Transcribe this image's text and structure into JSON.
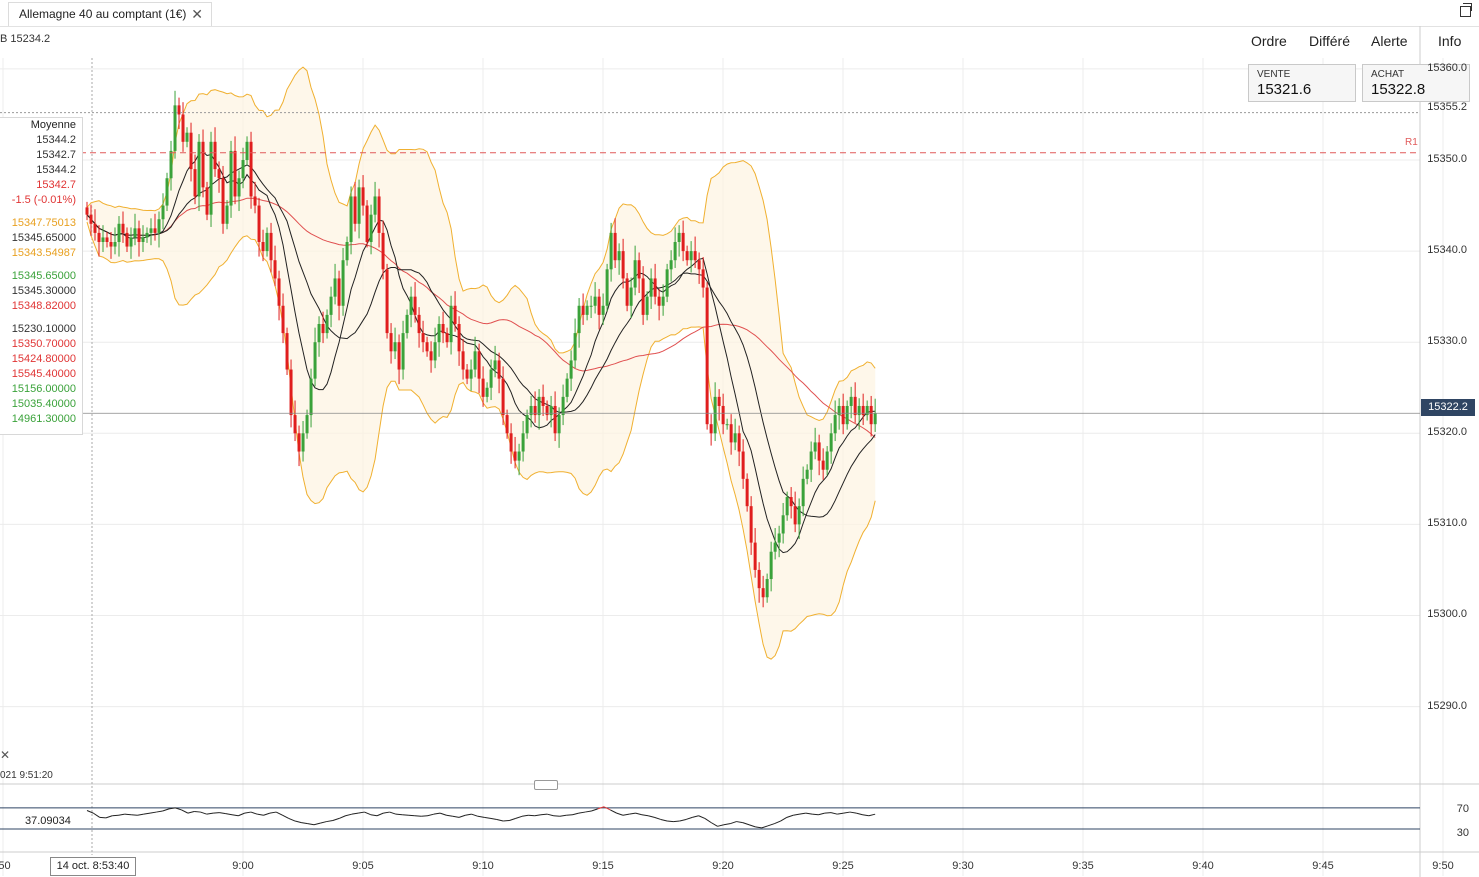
{
  "tab": {
    "title": "Allemagne 40 au comptant (1€)",
    "close": "✕"
  },
  "header": {
    "ohlc": "B 15234.2"
  },
  "menu": {
    "order": "Ordre",
    "deferred": "Différé",
    "alert": "Alerte",
    "info": "Info"
  },
  "quote": {
    "sell_label": "VENTE",
    "sell_value": "15321.6",
    "buy_label": "ACHAT",
    "buy_value": "15322.8"
  },
  "legend": {
    "title": "Moyenne",
    "rows": [
      {
        "text": "15344.2",
        "color": "#333333"
      },
      {
        "text": "15342.7",
        "color": "#333333"
      },
      {
        "text": "15344.2",
        "color": "#333333"
      },
      {
        "text": "15342.7",
        "color": "#e03434"
      },
      {
        "text": "-1.5 (-0.01%)",
        "color": "#e03434"
      },
      {
        "text": "15347.75013",
        "color": "#e8a020"
      },
      {
        "text": "15345.65000",
        "color": "#333333"
      },
      {
        "text": "15343.54987",
        "color": "#e8a020"
      },
      {
        "text": "15345.65000",
        "color": "#3aa23a"
      },
      {
        "text": "15345.30000",
        "color": "#333333"
      },
      {
        "text": "15348.82000",
        "color": "#e03434"
      },
      {
        "text": "15230.10000",
        "color": "#333333"
      },
      {
        "text": "15350.70000",
        "color": "#e03434"
      },
      {
        "text": "15424.80000",
        "color": "#e03434"
      },
      {
        "text": "15545.40000",
        "color": "#e03434"
      },
      {
        "text": "15156.00000",
        "color": "#3aa23a"
      },
      {
        "text": "15035.40000",
        "color": "#3aa23a"
      },
      {
        "text": "14961.30000",
        "color": "#3aa23a"
      }
    ]
  },
  "current_price": "15322.2",
  "r1_label": "R1",
  "r1_value": 15350.8,
  "dotted_level": 15355.2,
  "dotted_level_label": "15355.2",
  "cursor_time": "14 oct. 8:53:40",
  "datetime_left": "021 9:51:20",
  "close_mark": "✕",
  "rsi": {
    "value_label": "37.09034",
    "upper": 70,
    "lower": 30,
    "upper_label": "70",
    "lower_label": "30"
  },
  "colors": {
    "up": "#3aa23a",
    "down": "#e01e1e",
    "bollinger": "#f0b030",
    "ma_red": "#e05050",
    "ma_black": "#222222"
  },
  "chart_data": {
    "type": "candlestick",
    "interval": "10s",
    "ylim": [
      15281.5,
      15361.2
    ],
    "y_ticks": [
      "15360.0",
      "15350.0",
      "15340.0",
      "15330.0",
      "15320.0",
      "15310.0",
      "15300.0",
      "15290.0"
    ],
    "y_tick_values": [
      15360,
      15350,
      15340,
      15330,
      15320,
      15310,
      15300,
      15290
    ],
    "x_ticks": [
      ":50",
      "9:00",
      "9:05",
      "9:10",
      "9:15",
      "9:20",
      "9:25",
      "9:30",
      "9:35",
      "9:40",
      "9:45",
      "9:50"
    ],
    "x_tick_minutes": [
      -10,
      0,
      5,
      10,
      15,
      20,
      25,
      30,
      35,
      40,
      45,
      50
    ],
    "candle_start_minute": -6.5,
    "candle_step_minutes": 0.1667,
    "closes": [
      15344.0,
      15343.0,
      15342.0,
      15341.0,
      15341.5,
      15341.0,
      15340.5,
      15341.0,
      15343.0,
      15342.0,
      15340.5,
      15341.5,
      15342.5,
      15341.0,
      15341.5,
      15342.0,
      15342.5,
      15342.0,
      15343.5,
      15345.0,
      15348.0,
      15351.0,
      15356.0,
      15355.0,
      15352.0,
      15353.0,
      15349.0,
      15346.0,
      15352.0,
      15347.0,
      15344.0,
      15352.0,
      15349.0,
      15348.0,
      15343.0,
      15345.0,
      15351.0,
      15346.0,
      15348.0,
      15350.0,
      15352.0,
      15346.0,
      15345.0,
      15341.0,
      15340.0,
      15342.0,
      15339.0,
      15337.0,
      15334.0,
      15331.0,
      15327.0,
      15322.0,
      15320.0,
      15318.0,
      15320.0,
      15322.0,
      15326.0,
      15330.0,
      15332.0,
      15331.0,
      15333.0,
      15335.0,
      15337.0,
      15334.0,
      15339.0,
      15341.0,
      15346.0,
      15343.0,
      15347.0,
      15345.0,
      15341.0,
      15344.0,
      15346.0,
      15342.0,
      15338.0,
      15331.0,
      15329.0,
      15330.0,
      15327.0,
      15331.0,
      15333.0,
      15335.0,
      15333.0,
      15331.0,
      15330.0,
      15329.0,
      15328.0,
      15330.0,
      15332.0,
      15331.0,
      15330.0,
      15334.0,
      15332.0,
      15329.0,
      15327.0,
      15326.0,
      15327.0,
      15329.0,
      15326.0,
      15324.0,
      15325.0,
      15327.0,
      15328.0,
      15326.0,
      15322.0,
      15320.0,
      15318.0,
      15317.0,
      15318.0,
      15320.0,
      15322.0,
      15323.0,
      15322.0,
      15324.0,
      15323.0,
      15322.0,
      15323.0,
      15320.0,
      15322.0,
      15324.0,
      15326.0,
      15328.0,
      15331.0,
      15334.0,
      15333.0,
      15334.0,
      15334.0,
      15335.0,
      15333.0,
      15334.0,
      15338.0,
      15342.0,
      15339.0,
      15340.0,
      15337.0,
      15334.0,
      15336.0,
      15339.0,
      15337.0,
      15333.0,
      15335.0,
      15337.0,
      15335.0,
      15334.0,
      15335.0,
      15338.0,
      15339.0,
      15341.0,
      15342.0,
      15340.0,
      15339.0,
      15340.0,
      15339.0,
      15338.0,
      15336.0,
      15321.0,
      15320.0,
      15324.0,
      15323.0,
      15321.0,
      15321.0,
      15319.0,
      15320.0,
      15318.0,
      15315.0,
      15312.0,
      15308.0,
      15305.0,
      15303.0,
      15302.0,
      15304.0,
      15307.0,
      15308.0,
      15309.0,
      15311.0,
      15313.0,
      15312.0,
      15310.0,
      15312.0,
      15315.0,
      15316.0,
      15318.0,
      15319.0,
      15317.0,
      15316.0,
      15318.0,
      15320.0,
      15322.0,
      15323.0,
      15321.0,
      15323.0,
      15324.0,
      15322.0,
      15323.0,
      15322.0,
      15323.0,
      15321.0,
      15322.2
    ],
    "bb_upper_mid_lower_note": "",
    "rsi_values": [
      65,
      60,
      52,
      51,
      55,
      56,
      58,
      57,
      56,
      58,
      60,
      62,
      64,
      68,
      70,
      66,
      60,
      63,
      62,
      58,
      60,
      61,
      59,
      57,
      55,
      60,
      62,
      58,
      56,
      60,
      62,
      56,
      50,
      45,
      42,
      40,
      38,
      41,
      44,
      46,
      50,
      55,
      58,
      60,
      62,
      57,
      55,
      60,
      62,
      58,
      57,
      56,
      55,
      54,
      55,
      58,
      60,
      56,
      54,
      52,
      56,
      58,
      54,
      52,
      50,
      48,
      45,
      46,
      50,
      54,
      56,
      55,
      57,
      58,
      55,
      54,
      56,
      57,
      60,
      62,
      64,
      68,
      72,
      66,
      60,
      56,
      58,
      60,
      57,
      55,
      52,
      48,
      45,
      44,
      45,
      48,
      52,
      55,
      50,
      42,
      35,
      38,
      40,
      44,
      42,
      38,
      34,
      32,
      36,
      40,
      45,
      52,
      56,
      58,
      60,
      58,
      57,
      60,
      61,
      58,
      60,
      62,
      60,
      57,
      55,
      58
    ]
  }
}
